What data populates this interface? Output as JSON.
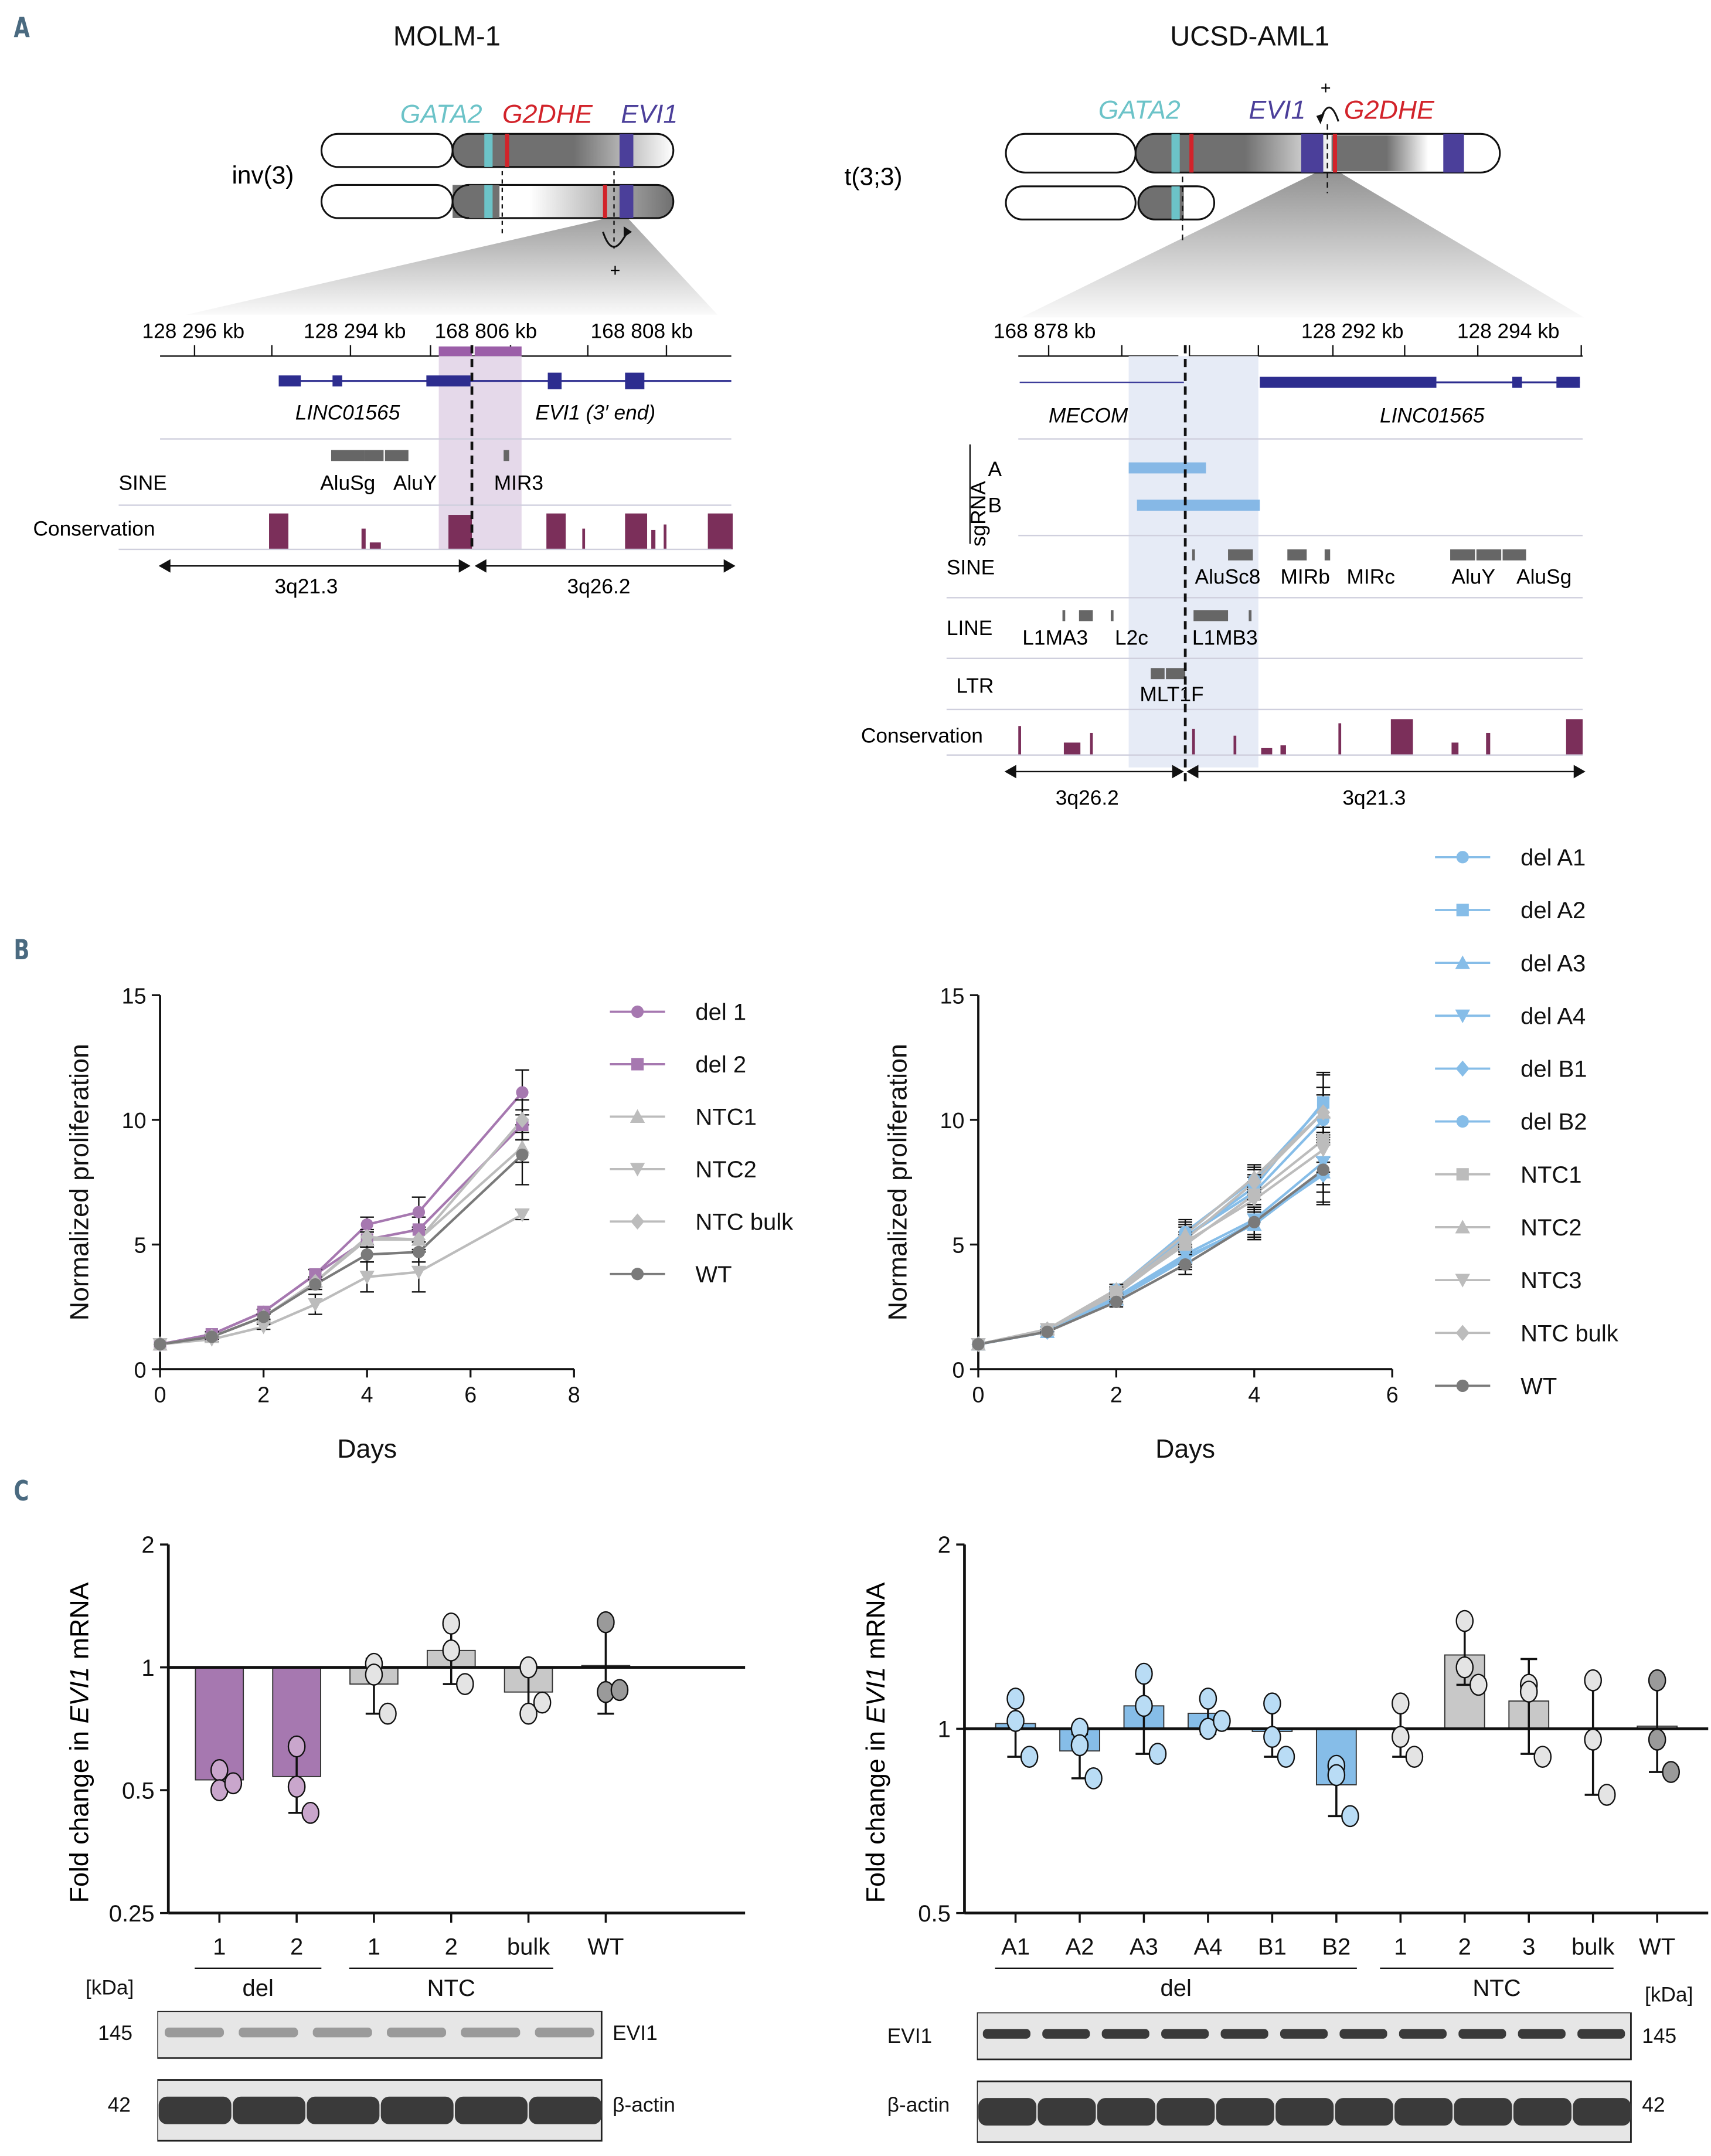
{
  "panels": {
    "a": "A",
    "b": "B",
    "c": "C"
  },
  "panel_a": {
    "left": {
      "title": "MOLM-1",
      "rearrangement": "inv(3)",
      "gene_labels": [
        {
          "text": "GATA2",
          "color": "#6cc3c8"
        },
        {
          "text": "G2DHE",
          "color": "#d2232a"
        },
        {
          "text": "EVI1",
          "color": "#4b3f9a"
        }
      ],
      "plus_label": "+",
      "ruler_ticks": [
        "128 296 kb",
        "128 294 kb",
        "168 806 kb",
        "168 808 kb"
      ],
      "genes": [
        "LINC01565",
        "EVI1 (3′ end)"
      ],
      "tracks": {
        "sine_label": "SINE",
        "conservation_label": "Conservation"
      },
      "sine_elements": [
        "AluSg",
        "AluY",
        "MIR3"
      ],
      "bands": [
        "3q21.3",
        "3q26.2"
      ]
    },
    "right": {
      "title": "UCSD-AML1",
      "rearrangement": "t(3;3)",
      "gene_labels": [
        {
          "text": "GATA2",
          "color": "#6cc3c8"
        },
        {
          "text": "EVI1",
          "color": "#4b3f9a"
        },
        {
          "text": "G2DHE",
          "color": "#d2232a"
        }
      ],
      "plus_label": "+",
      "ruler_ticks": [
        "168 878 kb",
        "128 292 kb",
        "128 294 kb"
      ],
      "genes": [
        "MECOM",
        "LINC01565"
      ],
      "tracks": {
        "sgrna_label": "sgRNA",
        "sgrna_a": "A",
        "sgrna_b": "B",
        "sine_label": "SINE",
        "line_label": "LINE",
        "ltr_label": "LTR",
        "conservation_label": "Conservation"
      },
      "sine_elements": [
        "AluSc8",
        "MIRb",
        "MIRc",
        "AluY",
        "AluSg"
      ],
      "line_elements": [
        "L1MA3",
        "L2c",
        "L1MB3"
      ],
      "ltr_elements": [
        "MLT1F"
      ],
      "bands": [
        "3q26.2",
        "3q21.3"
      ]
    }
  },
  "chart_data": [
    {
      "id": "b-left",
      "type": "line",
      "title": "MOLM-1 proliferation",
      "xlabel": "Days",
      "ylabel": "Normalized proliferation",
      "xlim": [
        0,
        8
      ],
      "ylim": [
        0,
        15
      ],
      "xticks": [
        "0",
        "2",
        "4",
        "6",
        "8"
      ],
      "yticks": [
        "0",
        "5",
        "10",
        "15"
      ],
      "legend_position": "right",
      "x": [
        0,
        1,
        2,
        3,
        4,
        5,
        7
      ],
      "series": [
        {
          "name": "del 1",
          "color": "#a678b0",
          "marker": "circle",
          "values": [
            1.0,
            1.4,
            2.3,
            3.8,
            5.8,
            6.3,
            11.1
          ],
          "errors": [
            0,
            0.1,
            0.1,
            0.2,
            0.3,
            0.6,
            0.9
          ]
        },
        {
          "name": "del 2",
          "color": "#a678b0",
          "marker": "square",
          "values": [
            1.0,
            1.4,
            2.3,
            3.8,
            5.2,
            5.6,
            9.8
          ],
          "errors": [
            0,
            0.1,
            0.1,
            0.2,
            0.3,
            0.5,
            0.6
          ]
        },
        {
          "name": "NTC1",
          "color": "#bcbcbc",
          "marker": "triangle",
          "values": [
            1.0,
            1.3,
            2.1,
            3.5,
            5.2,
            5.2,
            8.9
          ],
          "errors": [
            0,
            0.1,
            0.1,
            0.2,
            0.3,
            0.4,
            0.6
          ]
        },
        {
          "name": "NTC2",
          "color": "#bcbcbc",
          "marker": "triangle-down",
          "values": [
            1.0,
            1.2,
            1.7,
            2.6,
            3.7,
            3.9,
            6.2
          ],
          "errors": [
            0,
            0.1,
            0.1,
            0.4,
            0.6,
            0.8,
            0.2
          ]
        },
        {
          "name": "NTC bulk",
          "color": "#bcbcbc",
          "marker": "diamond",
          "values": [
            1.0,
            1.3,
            2.1,
            3.5,
            5.3,
            5.2,
            10.0
          ],
          "errors": [
            0,
            0.1,
            0.1,
            0.2,
            0.3,
            0.4,
            0.8
          ]
        },
        {
          "name": "WT",
          "color": "#7a7a7a",
          "marker": "circle",
          "values": [
            1.0,
            1.3,
            2.1,
            3.4,
            4.6,
            4.7,
            8.6
          ],
          "errors": [
            0,
            0.1,
            0.1,
            0.2,
            0.3,
            0.4,
            1.2
          ]
        }
      ]
    },
    {
      "id": "b-right",
      "type": "line",
      "title": "UCSD-AML1 proliferation",
      "xlabel": "Days",
      "ylabel": "Normalized proliferation",
      "xlim": [
        0,
        6
      ],
      "ylim": [
        0,
        15
      ],
      "xticks": [
        "0",
        "2",
        "4",
        "6"
      ],
      "yticks": [
        "0",
        "5",
        "10",
        "15"
      ],
      "legend_position": "top-right",
      "x": [
        0,
        1,
        2,
        3,
        4,
        5
      ],
      "series": [
        {
          "name": "del A1",
          "color": "#86bde8",
          "marker": "circle",
          "values": [
            1.0,
            1.5,
            3.2,
            5.5,
            7.6,
            10.6
          ],
          "errors": [
            0,
            0.1,
            0.2,
            0.5,
            0.5,
            1.2
          ]
        },
        {
          "name": "del A2",
          "color": "#86bde8",
          "marker": "square",
          "values": [
            1.0,
            1.5,
            3.1,
            5.3,
            7.3,
            10.7
          ],
          "errors": [
            0,
            0.1,
            0.2,
            0.5,
            0.5,
            1.2
          ]
        },
        {
          "name": "del A3",
          "color": "#86bde8",
          "marker": "triangle",
          "values": [
            1.0,
            1.5,
            2.8,
            4.5,
            5.8,
            7.9
          ],
          "errors": [
            0,
            0.1,
            0.2,
            0.4,
            0.6,
            1.2
          ]
        },
        {
          "name": "del A4",
          "color": "#86bde8",
          "marker": "triangle-down",
          "values": [
            1.0,
            1.5,
            2.9,
            4.6,
            6.0,
            8.3
          ],
          "errors": [
            0,
            0.1,
            0.2,
            0.4,
            0.6,
            0.9
          ]
        },
        {
          "name": "del B1",
          "color": "#86bde8",
          "marker": "diamond",
          "values": [
            1.0,
            1.5,
            2.8,
            4.4,
            5.9,
            7.8
          ],
          "errors": [
            0,
            0.1,
            0.2,
            0.4,
            0.6,
            0.7
          ]
        },
        {
          "name": "del B2",
          "color": "#86bde8",
          "marker": "circle",
          "values": [
            1.0,
            1.5,
            3.0,
            5.3,
            7.1,
            10.0
          ],
          "errors": [
            0,
            0.1,
            0.2,
            0.5,
            0.6,
            1.0
          ]
        },
        {
          "name": "NTC1",
          "color": "#bcbcbc",
          "marker": "square",
          "values": [
            1.0,
            1.6,
            3.1,
            5.0,
            7.0,
            9.2
          ],
          "errors": [
            0,
            0.1,
            0.2,
            0.4,
            0.5,
            0.9
          ]
        },
        {
          "name": "NTC2",
          "color": "#bcbcbc",
          "marker": "triangle",
          "values": [
            1.0,
            1.6,
            3.2,
            5.4,
            7.7,
            10.3
          ],
          "errors": [
            0,
            0.1,
            0.2,
            0.5,
            0.5,
            1.0
          ]
        },
        {
          "name": "NTC3",
          "color": "#bcbcbc",
          "marker": "triangle-down",
          "values": [
            1.0,
            1.6,
            3.0,
            5.1,
            6.8,
            8.8
          ],
          "errors": [
            0,
            0.1,
            0.2,
            0.4,
            0.5,
            0.9
          ]
        },
        {
          "name": "NTC bulk",
          "color": "#bcbcbc",
          "marker": "diamond",
          "values": [
            1.0,
            1.6,
            3.1,
            5.2,
            7.5,
            10.3
          ],
          "errors": [
            0,
            0.1,
            0.2,
            0.5,
            0.5,
            1.0
          ]
        },
        {
          "name": "WT",
          "color": "#7a7a7a",
          "marker": "circle",
          "values": [
            1.0,
            1.5,
            2.7,
            4.2,
            5.9,
            8.0
          ],
          "errors": [
            0,
            0.1,
            0.2,
            0.4,
            0.7,
            1.4
          ]
        }
      ]
    },
    {
      "id": "c-left",
      "type": "bar",
      "ylabel": "Fold change in EVI1 mRNA",
      "yscale": "log2",
      "ylim": [
        0.25,
        2
      ],
      "yticks": [
        "0.25",
        "0.5",
        "1",
        "2"
      ],
      "categories": [
        "1",
        "2",
        "1",
        "2",
        "bulk",
        "WT"
      ],
      "groups": [
        {
          "label": "del",
          "span": [
            0,
            1
          ]
        },
        {
          "label": "NTC",
          "span": [
            2,
            4
          ]
        }
      ],
      "values": [
        0.53,
        0.54,
        0.91,
        1.1,
        0.87,
        1.01
      ],
      "points": [
        [
          0.56,
          0.5,
          0.52
        ],
        [
          0.64,
          0.51,
          0.44
        ],
        [
          1.02,
          0.96,
          0.77
        ],
        [
          1.28,
          1.1,
          0.91
        ],
        [
          1.0,
          0.77,
          0.82
        ],
        [
          1.29,
          0.87,
          0.88
        ]
      ],
      "errors_low": [
        0.5,
        0.44,
        0.77,
        0.91,
        0.77,
        0.77
      ],
      "errors_high": [
        0.56,
        0.64,
        1.05,
        1.28,
        0.99,
        1.27
      ],
      "bar_colors": [
        "#a678b0",
        "#a678b0",
        "#c8c8c8",
        "#c8c8c8",
        "#c8c8c8",
        "#c8c8c8"
      ],
      "point_colors": [
        "#c9a6cc",
        "#c9a6cc",
        "#e4e4e4",
        "#e4e4e4",
        "#e4e4e4",
        "#9a9a9a"
      ]
    },
    {
      "id": "c-right",
      "type": "bar",
      "ylabel": "Fold change in EVI1 mRNA",
      "yscale": "log2",
      "ylim": [
        0.5,
        2
      ],
      "yticks": [
        "0.5",
        "1",
        "2"
      ],
      "categories": [
        "A1",
        "A2",
        "A3",
        "A4",
        "B1",
        "B2",
        "1",
        "2",
        "3",
        "bulk",
        "WT"
      ],
      "groups": [
        {
          "label": "del",
          "span": [
            0,
            5
          ]
        },
        {
          "label": "NTC",
          "span": [
            6,
            9
          ]
        }
      ],
      "values": [
        1.02,
        0.92,
        1.09,
        1.06,
        0.99,
        0.81,
        1.0,
        1.32,
        1.11,
        1.0,
        1.01
      ],
      "points": [
        [
          1.12,
          1.03,
          0.9
        ],
        [
          1.0,
          0.94,
          0.83
        ],
        [
          1.23,
          1.09,
          0.91
        ],
        [
          1.12,
          1.0,
          1.03
        ],
        [
          1.1,
          0.97,
          0.9
        ],
        [
          0.87,
          0.84,
          0.72
        ],
        [
          1.1,
          0.97,
          0.9
        ],
        [
          1.5,
          1.26,
          1.18
        ],
        [
          1.18,
          1.15,
          0.9
        ],
        [
          1.2,
          0.96,
          0.78
        ],
        [
          1.2,
          0.96,
          0.85
        ]
      ],
      "errors_low": [
        0.9,
        0.83,
        0.91,
        0.98,
        0.9,
        0.72,
        0.9,
        1.18,
        0.91,
        0.78,
        0.85
      ],
      "errors_high": [
        1.12,
        0.98,
        1.23,
        1.12,
        1.1,
        0.88,
        1.1,
        1.5,
        1.3,
        1.2,
        1.2
      ],
      "bar_colors": [
        "#86bde8",
        "#86bde8",
        "#86bde8",
        "#86bde8",
        "#86bde8",
        "#86bde8",
        "#c8c8c8",
        "#c8c8c8",
        "#c8c8c8",
        "#c8c8c8",
        "#c8c8c8"
      ],
      "point_colors": [
        "#b9dcf5",
        "#b9dcf5",
        "#b9dcf5",
        "#b9dcf5",
        "#b9dcf5",
        "#b9dcf5",
        "#e4e4e4",
        "#e4e4e4",
        "#e4e4e4",
        "#e4e4e4",
        "#9a9a9a"
      ]
    }
  ],
  "blots": {
    "left": {
      "kda_label": "[kDa]",
      "evi1_label": "EVI1",
      "actin_label": "β-actin",
      "evi1_kda": "145",
      "actin_kda": "42",
      "lanes": 6
    },
    "right": {
      "kda_label": "[kDa]",
      "evi1_label": "EVI1",
      "actin_label": "β-actin",
      "evi1_kda": "145",
      "actin_kda": "42",
      "lanes": 11
    }
  }
}
